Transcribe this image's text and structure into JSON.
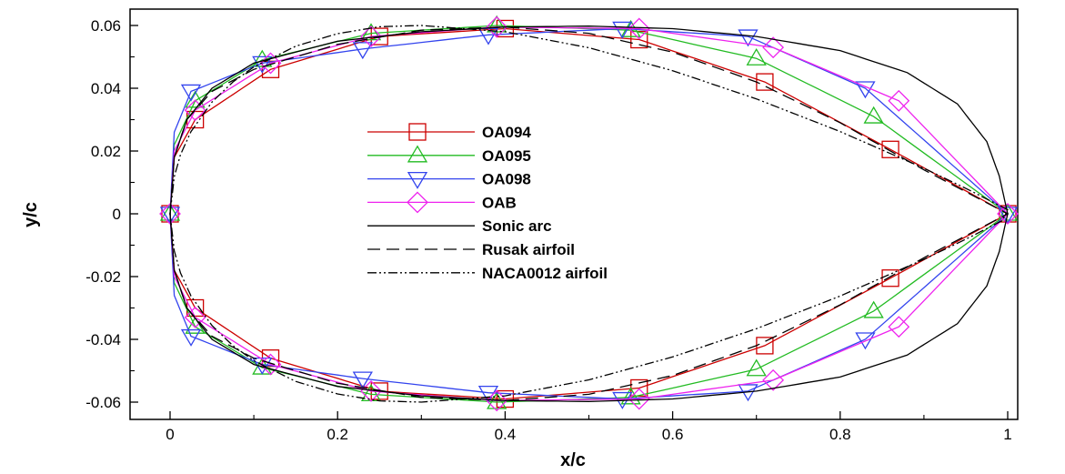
{
  "chart_data": {
    "type": "line",
    "title": "",
    "xlabel": "x/c",
    "ylabel": "y/c",
    "xlim": [
      -0.1,
      1.05
    ],
    "ylim": [
      -0.067,
      0.066
    ],
    "grid": false,
    "legend_position": "center",
    "x_ticks": [
      0,
      0.2,
      0.4,
      0.6,
      0.8,
      1
    ],
    "x_tick_labels": [
      "0",
      "0.2",
      "0.4",
      "0.6",
      "0.8",
      "1"
    ],
    "y_ticks": [
      -0.06,
      -0.04,
      -0.02,
      0,
      0.02,
      0.04,
      0.06
    ],
    "y_tick_labels": [
      "-0.06",
      "-0.04",
      "-0.02",
      "0",
      "0.02",
      "0.04",
      "0.06"
    ],
    "series": [
      {
        "name": "OA094",
        "color": "#cc0000",
        "dash": "solid",
        "marker": "square",
        "x": [
          0,
          0.005,
          0.03,
          0.12,
          0.25,
          0.4,
          0.56,
          0.71,
          0.86,
          1
        ],
        "y": [
          0,
          0.018,
          0.03,
          0.046,
          0.0565,
          0.059,
          0.0555,
          0.042,
          0.0205,
          0
        ],
        "markers_x": [
          0,
          0.03,
          0.12,
          0.25,
          0.4,
          0.56,
          0.71,
          0.86,
          1
        ],
        "markers_y": [
          0,
          0.03,
          0.046,
          0.0565,
          0.059,
          0.0555,
          0.042,
          0.0205,
          0
        ]
      },
      {
        "name": "OA095",
        "color": "#22bb22",
        "dash": "solid",
        "marker": "triangle-up",
        "x": [
          0,
          0.005,
          0.03,
          0.11,
          0.24,
          0.39,
          0.55,
          0.7,
          0.84,
          1
        ],
        "y": [
          0,
          0.022,
          0.036,
          0.049,
          0.0575,
          0.06,
          0.0585,
          0.0495,
          0.031,
          0
        ],
        "markers_x": [
          0,
          0.03,
          0.11,
          0.24,
          0.39,
          0.55,
          0.7,
          0.84,
          1
        ],
        "markers_y": [
          0,
          0.036,
          0.049,
          0.0575,
          0.06,
          0.0585,
          0.0495,
          0.031,
          0
        ]
      },
      {
        "name": "OA098",
        "color": "#3344ee",
        "dash": "solid",
        "marker": "triangle-down",
        "x": [
          0,
          0.005,
          0.025,
          0.11,
          0.23,
          0.38,
          0.54,
          0.69,
          0.83,
          1
        ],
        "y": [
          0,
          0.026,
          0.039,
          0.048,
          0.0525,
          0.057,
          0.059,
          0.0565,
          0.04,
          0
        ],
        "markers_x": [
          0,
          0.025,
          0.11,
          0.23,
          0.38,
          0.54,
          0.69,
          0.83,
          1
        ],
        "markers_y": [
          0,
          0.039,
          0.048,
          0.0525,
          0.057,
          0.059,
          0.0565,
          0.04,
          0
        ]
      },
      {
        "name": "OAB",
        "color": "#ee22ee",
        "dash": "solid",
        "marker": "diamond",
        "x": [
          0,
          0.005,
          0.03,
          0.12,
          0.24,
          0.39,
          0.56,
          0.72,
          0.87,
          1
        ],
        "y": [
          0,
          0.02,
          0.033,
          0.048,
          0.0565,
          0.0595,
          0.059,
          0.053,
          0.036,
          0
        ],
        "markers_x": [
          0,
          0.03,
          0.12,
          0.24,
          0.39,
          0.56,
          0.72,
          0.87,
          1
        ],
        "markers_y": [
          0,
          0.033,
          0.048,
          0.0565,
          0.0595,
          0.059,
          0.053,
          0.036,
          0
        ]
      },
      {
        "name": "Sonic arc",
        "color": "#000000",
        "dash": "solid",
        "marker": "none",
        "x": [
          0,
          0.005,
          0.02,
          0.05,
          0.1,
          0.2,
          0.3,
          0.4,
          0.5,
          0.6,
          0.7,
          0.8,
          0.88,
          0.94,
          0.975,
          0.99,
          1.0
        ],
        "y": [
          0,
          0.018,
          0.03,
          0.04,
          0.048,
          0.055,
          0.058,
          0.0595,
          0.0598,
          0.059,
          0.0565,
          0.052,
          0.045,
          0.035,
          0.023,
          0.012,
          0
        ]
      },
      {
        "name": "Rusak airfoil",
        "color": "#000000",
        "dash": "dashed",
        "marker": "none",
        "x": [
          0,
          0.005,
          0.02,
          0.05,
          0.1,
          0.2,
          0.3,
          0.4,
          0.5,
          0.6,
          0.7,
          0.8,
          0.9,
          1.0
        ],
        "y": [
          0,
          0.018,
          0.03,
          0.039,
          0.046,
          0.054,
          0.0585,
          0.0595,
          0.0575,
          0.0515,
          0.042,
          0.029,
          0.014,
          0
        ]
      },
      {
        "name": "NACA0012 airfoil",
        "color": "#000000",
        "dash": "dashdotdot",
        "marker": "none",
        "x": [
          0,
          0.005,
          0.0125,
          0.025,
          0.05,
          0.075,
          0.1,
          0.15,
          0.2,
          0.25,
          0.3,
          0.4,
          0.5,
          0.6,
          0.7,
          0.8,
          0.9,
          0.95,
          1.0
        ],
        "y": [
          0,
          0.0118,
          0.0189,
          0.0262,
          0.0356,
          0.042,
          0.0468,
          0.0534,
          0.0574,
          0.0596,
          0.06,
          0.058,
          0.0529,
          0.0456,
          0.0366,
          0.0262,
          0.0145,
          0.0081,
          0.0013
        ]
      }
    ]
  }
}
